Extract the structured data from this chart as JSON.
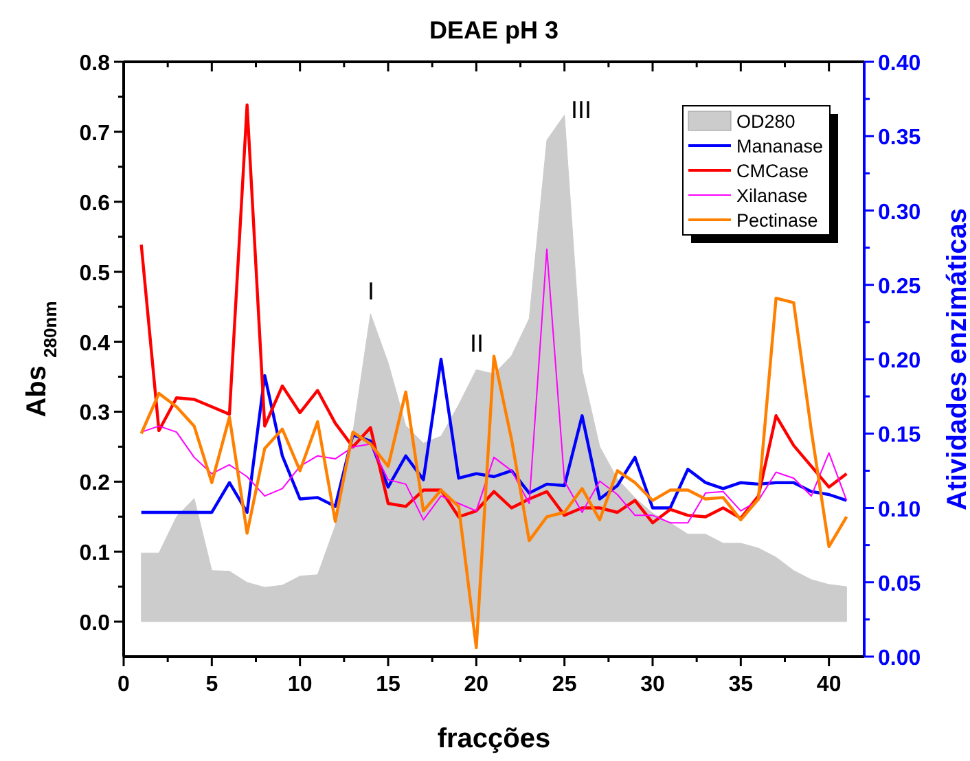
{
  "chart_data": {
    "type": "area",
    "title": "DEAE pH 3",
    "xlabel": "fracções",
    "ylabel": "Abs $_{280nm}$",
    "y2label": "Atividades enzimáticas",
    "x": [
      1,
      2,
      3,
      4,
      5,
      6,
      7,
      8,
      9,
      10,
      11,
      12,
      13,
      14,
      15,
      16,
      17,
      18,
      19,
      20,
      21,
      22,
      23,
      24,
      25,
      26,
      27,
      28,
      29,
      30,
      31,
      32,
      33,
      34,
      35,
      36,
      37,
      38,
      39,
      40,
      41
    ],
    "series": [
      {
        "name": "OD280",
        "axis": "y",
        "color": "#cccccc",
        "values": [
          0.098,
          0.098,
          0.15,
          0.176,
          0.073,
          0.072,
          0.056,
          0.049,
          0.052,
          0.065,
          0.067,
          0.137,
          0.27,
          0.44,
          0.37,
          0.28,
          0.255,
          0.265,
          0.31,
          0.36,
          0.354,
          0.38,
          0.433,
          0.688,
          0.724,
          0.36,
          0.25,
          0.204,
          0.177,
          0.155,
          0.141,
          0.125,
          0.125,
          0.112,
          0.112,
          0.105,
          0.092,
          0.073,
          0.06,
          0.053,
          0.05
        ]
      },
      {
        "name": "Mananase",
        "type": "line",
        "axis": "y2",
        "color": "#0000ff",
        "values": [
          0.097,
          0.097,
          0.097,
          0.097,
          0.097,
          0.117,
          0.097,
          0.189,
          0.135,
          0.106,
          0.107,
          0.101,
          0.149,
          0.145,
          0.114,
          0.135,
          0.119,
          0.2,
          0.12,
          0.123,
          0.121,
          0.125,
          0.11,
          0.116,
          0.115,
          0.162,
          0.106,
          0.115,
          0.134,
          0.1,
          0.1,
          0.126,
          0.117,
          0.113,
          0.117,
          0.116,
          0.117,
          0.117,
          0.111,
          0.109,
          0.105
        ]
      },
      {
        "name": "CMCase",
        "type": "line",
        "axis": "y2",
        "color": "#ff0000",
        "values": [
          0.277,
          0.152,
          0.174,
          0.173,
          0.168,
          0.163,
          0.371,
          0.155,
          0.182,
          0.164,
          0.179,
          0.157,
          0.141,
          0.154,
          0.103,
          0.101,
          0.112,
          0.112,
          0.094,
          0.098,
          0.111,
          0.1,
          0.106,
          0.111,
          0.095,
          0.1,
          0.1,
          0.097,
          0.105,
          0.09,
          0.099,
          0.095,
          0.094,
          0.1,
          0.093,
          0.108,
          0.162,
          0.142,
          0.128,
          0.114,
          0.123
        ]
      },
      {
        "name": "Xilanase",
        "type": "line",
        "axis": "y2",
        "color": "#ff00ff",
        "values": [
          0.151,
          0.155,
          0.151,
          0.134,
          0.123,
          0.129,
          0.121,
          0.108,
          0.113,
          0.128,
          0.135,
          0.133,
          0.141,
          0.143,
          0.119,
          0.116,
          0.092,
          0.108,
          0.103,
          0.098,
          0.134,
          0.125,
          0.103,
          0.274,
          0.118,
          0.097,
          0.118,
          0.109,
          0.095,
          0.095,
          0.09,
          0.09,
          0.11,
          0.111,
          0.098,
          0.105,
          0.124,
          0.12,
          0.108,
          0.137,
          0.105
        ]
      },
      {
        "name": "Pectinase",
        "type": "line",
        "axis": "y2",
        "color": "#ff8000",
        "values": [
          0.15,
          0.177,
          0.168,
          0.155,
          0.117,
          0.161,
          0.083,
          0.14,
          0.153,
          0.125,
          0.158,
          0.091,
          0.151,
          0.143,
          0.128,
          0.178,
          0.098,
          0.112,
          0.101,
          0.006,
          0.202,
          0.146,
          0.078,
          0.094,
          0.097,
          0.113,
          0.092,
          0.125,
          0.117,
          0.105,
          0.112,
          0.112,
          0.106,
          0.107,
          0.092,
          0.106,
          0.241,
          0.238,
          0.152,
          0.074,
          0.094
        ]
      }
    ],
    "xlim": [
      0,
      42
    ],
    "xticks": [
      0,
      {
        "value": 2.5,
        "label": null
      },
      5,
      {
        "value": 7.5,
        "label": null
      },
      10,
      {
        "value": 12.5,
        "label": null
      },
      15,
      {
        "value": 17.5,
        "label": null
      },
      20,
      {
        "value": 22.5,
        "label": null
      },
      25,
      {
        "value": 27.5,
        "label": null
      },
      30,
      {
        "value": 32.5,
        "label": null
      },
      35,
      {
        "value": 37.5,
        "label": null
      },
      40
    ],
    "ylim": [
      -0.05,
      0.8
    ],
    "yticks": [
      {
        "value": 0,
        "label": "0.0"
      },
      {
        "value": 0.05,
        "label": null
      },
      {
        "value": 0.1,
        "label": "0.1"
      },
      {
        "value": 0.15,
        "label": null
      },
      {
        "value": 0.2,
        "label": "0.2"
      },
      {
        "value": 0.25,
        "label": null
      },
      {
        "value": 0.3,
        "label": "0.3"
      },
      {
        "value": 0.35,
        "label": null
      },
      {
        "value": 0.4,
        "label": "0.4"
      },
      {
        "value": 0.45,
        "label": null
      },
      {
        "value": 0.5,
        "label": "0.5"
      },
      {
        "value": 0.55,
        "label": null
      },
      {
        "value": 0.6,
        "label": "0.6"
      },
      {
        "value": 0.65,
        "label": null
      },
      {
        "value": 0.7,
        "label": "0.7"
      },
      {
        "value": 0.75,
        "label": null
      },
      {
        "value": 0.8,
        "label": "0.8"
      }
    ],
    "y2lim": [
      0,
      0.4
    ],
    "y2ticks": [
      {
        "value": 0,
        "label": "0.00"
      },
      {
        "value": 0.025,
        "label": null
      },
      {
        "value": 0.05,
        "label": "0.05"
      },
      {
        "value": 0.075,
        "label": null
      },
      {
        "value": 0.1,
        "label": "0.10"
      },
      {
        "value": 0.125,
        "label": null
      },
      {
        "value": 0.15,
        "label": "0.15"
      },
      {
        "value": 0.175,
        "label": null
      },
      {
        "value": 0.2,
        "label": "0.20"
      },
      {
        "value": 0.225,
        "label": null
      },
      {
        "value": 0.25,
        "label": "0.25"
      },
      {
        "value": 0.275,
        "label": null
      },
      {
        "value": 0.3,
        "label": "0.30"
      },
      {
        "value": 0.325,
        "label": null
      },
      {
        "value": 0.35,
        "label": "0.35"
      },
      {
        "value": 0.375,
        "label": null
      },
      {
        "value": 0.4,
        "label": "0.40"
      }
    ],
    "annotations": [
      "I",
      "II",
      "III"
    ],
    "legend": "top right",
    "grid": false,
    "marker": "none"
  }
}
